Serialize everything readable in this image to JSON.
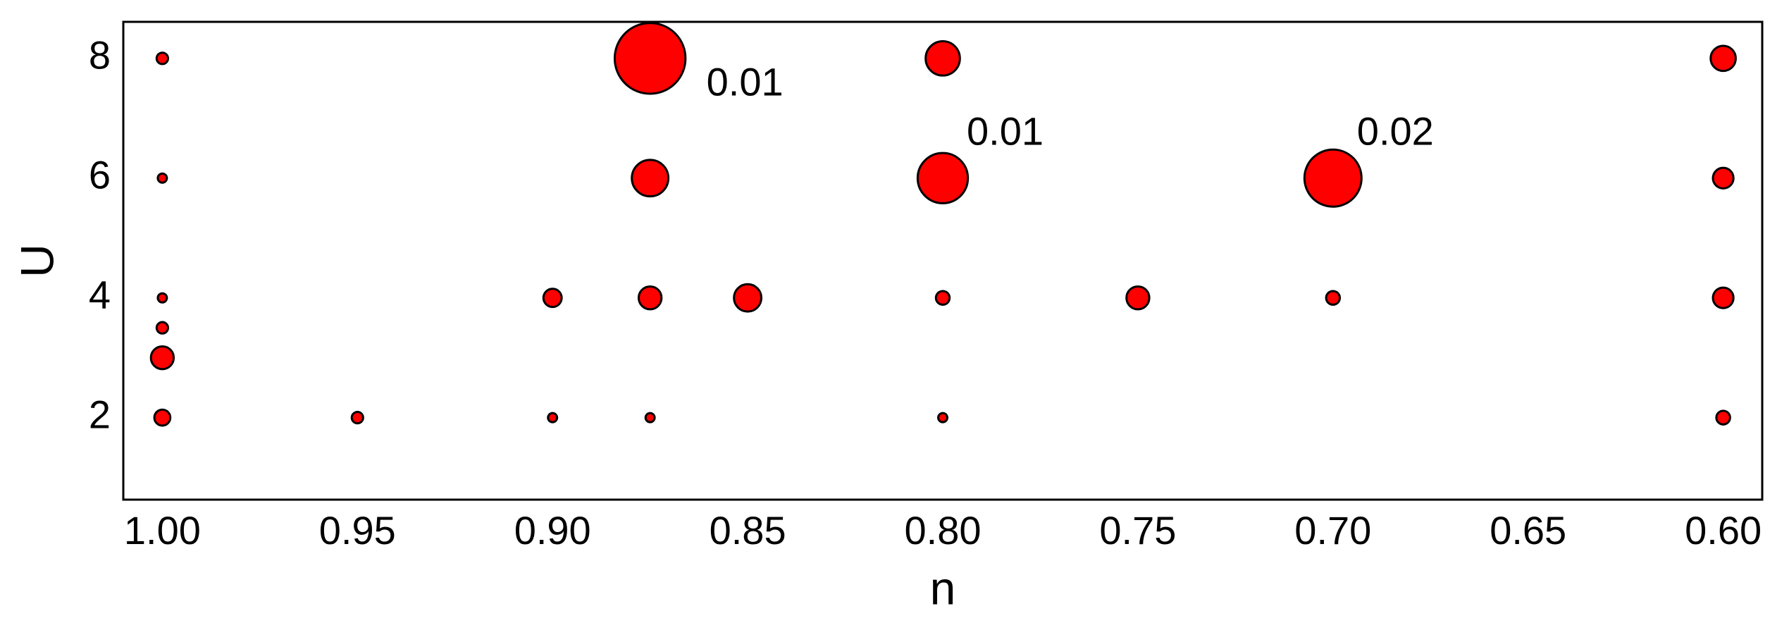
{
  "chart_data": {
    "type": "scatter",
    "xlabel": "n",
    "ylabel": "U",
    "color": "#ff0000",
    "edgecolor": "#000000",
    "x": [
      1.0,
      1.0,
      1.0,
      1.0,
      1.0,
      1.0,
      0.95,
      0.9,
      0.9,
      0.875,
      0.875,
      0.875,
      0.875,
      0.85,
      0.8,
      0.8,
      0.8,
      0.8,
      0.75,
      0.7,
      0.7,
      0.6,
      0.6,
      0.6,
      0.6
    ],
    "y": [
      8,
      6,
      4,
      3.5,
      3,
      2,
      2,
      4,
      2,
      8,
      6,
      4,
      2,
      4,
      8,
      6,
      4,
      2,
      4,
      6,
      4,
      8,
      6,
      4,
      2
    ],
    "sizes": [
      5,
      4,
      4,
      5,
      10,
      7,
      5,
      8,
      4,
      31,
      16,
      10,
      4,
      12,
      15,
      22,
      6,
      4,
      10,
      25,
      6,
      11,
      9,
      9,
      6
    ],
    "annotations": [
      {
        "text": "0.01",
        "x": 0.875,
        "y": 8
      },
      {
        "text": "0.01",
        "x": 0.8,
        "y": 6
      },
      {
        "text": "0.02",
        "x": 0.7,
        "y": 6
      }
    ],
    "xlim": [
      1.01,
      0.59
    ],
    "ylim": [
      0.63,
      8.61
    ],
    "xticks": [
      {
        "value": 1.0,
        "label": "1.00"
      },
      0.95,
      {
        "value": 0.9,
        "label": "0.90"
      },
      0.85,
      {
        "value": 0.8,
        "label": "0.80"
      },
      0.75,
      {
        "value": 0.7,
        "label": "0.70"
      },
      0.65,
      {
        "value": 0.6,
        "label": "0.60"
      }
    ],
    "yticks": [
      2,
      4,
      6,
      8
    ]
  }
}
